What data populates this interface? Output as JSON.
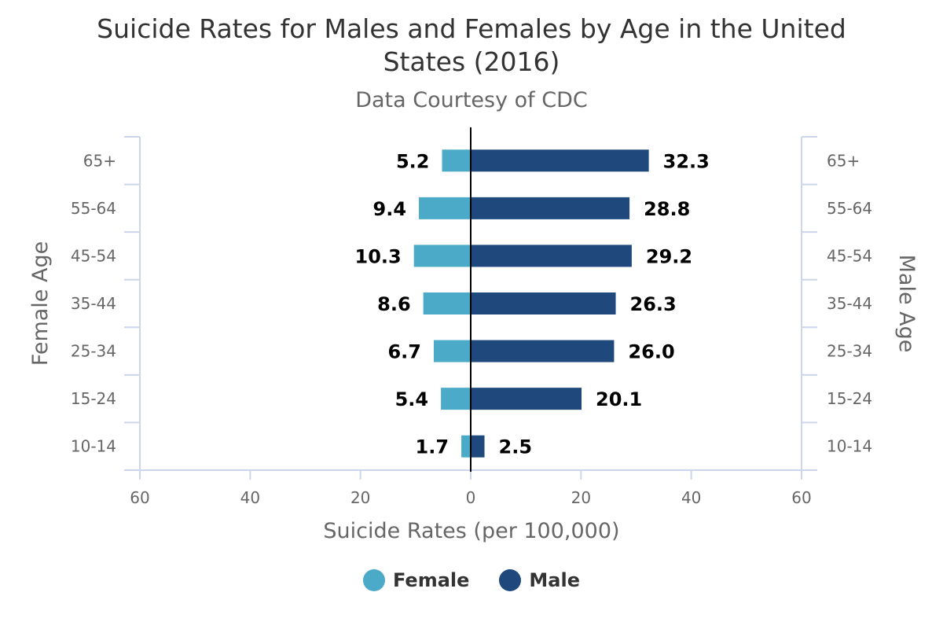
{
  "chart_data": {
    "type": "bar",
    "orientation": "horizontal",
    "title": "Suicide Rates for Males and Females by Age in the United States (2016)",
    "title_lines": [
      "Suicide Rates for Males and Females by Age in the United",
      "States (2016)"
    ],
    "subtitle": "Data Courtesy of CDC",
    "categories": [
      "65+",
      "55-64",
      "45-54",
      "35-44",
      "25-34",
      "15-24",
      "10-14"
    ],
    "series": [
      {
        "name": "Female",
        "values": [
          5.2,
          9.4,
          10.3,
          8.6,
          6.7,
          5.4,
          1.7
        ],
        "labels": [
          "5.2",
          "9.4",
          "10.3",
          "8.6",
          "6.7",
          "5.4",
          "1.7"
        ],
        "color": "#4aaac8"
      },
      {
        "name": "Male",
        "values": [
          32.3,
          28.8,
          29.2,
          26.3,
          26.0,
          20.1,
          2.5
        ],
        "labels": [
          "32.3",
          "28.8",
          "29.2",
          "26.3",
          "26.0",
          "20.1",
          "2.5"
        ],
        "color": "#1f497d"
      }
    ],
    "xlabel": "Suicide Rates (per 100,000)",
    "ylabel_left": "Female Age",
    "ylabel_right": "Male Age",
    "xlim": [
      -60,
      60
    ],
    "xticks": [
      "60",
      "40",
      "20",
      "0",
      "20",
      "40",
      "60"
    ],
    "grid": false,
    "legend_position": "bottom"
  }
}
